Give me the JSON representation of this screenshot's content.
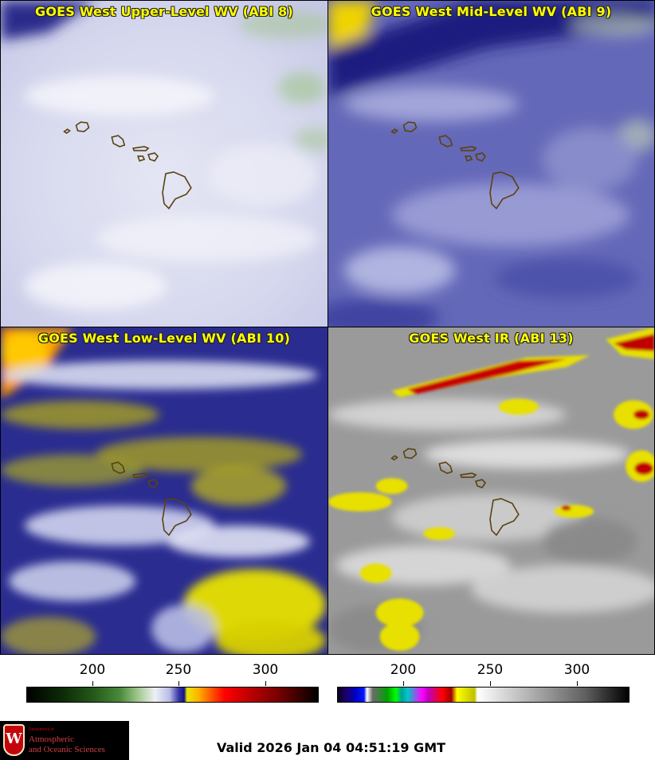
{
  "panels": [
    {
      "title": "GOES West Upper-Level WV (ABI 8)"
    },
    {
      "title": "GOES West Mid-Level WV (ABI 9)"
    },
    {
      "title": "GOES West Low-Level WV (ABI 10)"
    },
    {
      "title": "GOES West IR (ABI 13)"
    }
  ],
  "colorbars": [
    {
      "name": "water-vapor",
      "ticks": [
        "200",
        "250",
        "300"
      ]
    },
    {
      "name": "infrared",
      "ticks": [
        "200",
        "250",
        "300"
      ]
    }
  ],
  "logo": {
    "line1": "Department of",
    "line2": "Atmospheric",
    "line3": "and Oceanic Sciences",
    "crest_letter": "W"
  },
  "footer": {
    "valid_text": "Valid 2026 Jan 04 04:51:19 GMT"
  },
  "colors": {
    "title_text": "#ffff00",
    "island_outline": "#5a4210"
  }
}
